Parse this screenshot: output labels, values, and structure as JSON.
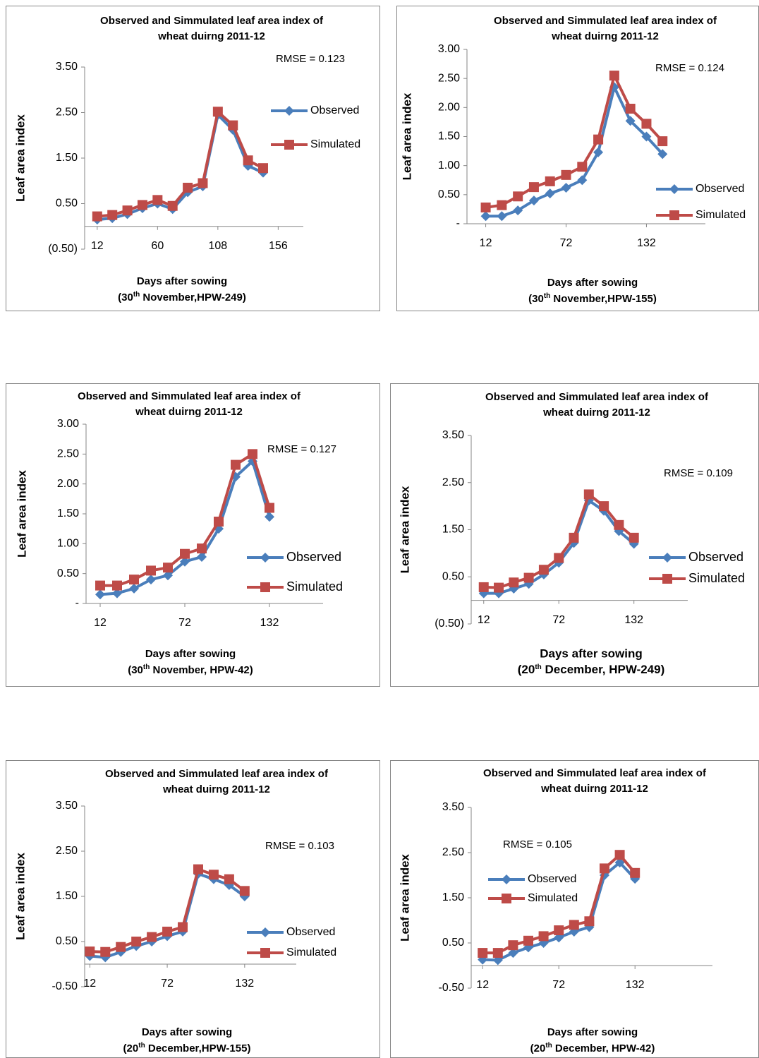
{
  "chart_data": [
    {
      "type": "line",
      "title": [
        "Observed and Simmulated leaf area index of",
        "wheat duirng  2011-12"
      ],
      "xlabel": "Days after sowing",
      "xlabel_note": [
        "(30",
        "th",
        " November,HPW-249)"
      ],
      "ylabel": "Leaf area index",
      "annotation": "RMSE = 0.123",
      "legend": "right",
      "grid": false,
      "x": [
        12,
        24,
        36,
        48,
        60,
        72,
        84,
        96,
        108,
        120,
        132,
        144
      ],
      "series": [
        {
          "name": "Observed",
          "color": "#4a7ebb",
          "marker": "diamond",
          "values": [
            0.15,
            0.18,
            0.27,
            0.4,
            0.5,
            0.38,
            0.75,
            0.88,
            2.45,
            2.12,
            1.33,
            1.18
          ]
        },
        {
          "name": "Simulated",
          "color": "#be4b48",
          "marker": "square",
          "values": [
            0.22,
            0.25,
            0.35,
            0.47,
            0.58,
            0.45,
            0.85,
            0.95,
            2.52,
            2.22,
            1.45,
            1.28
          ]
        }
      ],
      "xlim": [
        2,
        176
      ],
      "xticks": [
        12,
        60,
        108,
        156
      ],
      "ylim": [
        -0.5,
        3.5
      ],
      "yticks": [
        {
          "value": -0.5,
          "label": "(0.50)"
        },
        {
          "value": 0.5,
          "label": "0.50"
        },
        {
          "value": 1.5,
          "label": "1.50"
        },
        {
          "value": 2.5,
          "label": "2.50"
        },
        {
          "value": 3.5,
          "label": "3.50"
        }
      ]
    },
    {
      "type": "line",
      "title": [
        "Observed and Simmulated leaf area index of",
        "wheat duirng  2011-12"
      ],
      "xlabel": "Days after sowing",
      "xlabel_note": [
        "(30",
        "th",
        " November,HPW-155)"
      ],
      "ylabel": "Leaf area index",
      "annotation": "RMSE = 0.124",
      "legend": "lower right",
      "grid": false,
      "x": [
        12,
        24,
        36,
        48,
        60,
        72,
        84,
        96,
        108,
        120,
        132,
        144
      ],
      "series": [
        {
          "name": "Observed",
          "color": "#4a7ebb",
          "marker": "diamond",
          "values": [
            0.13,
            0.13,
            0.23,
            0.4,
            0.52,
            0.62,
            0.75,
            1.23,
            2.35,
            1.77,
            1.5,
            1.2
          ]
        },
        {
          "name": "Simulated",
          "color": "#be4b48",
          "marker": "square",
          "values": [
            0.28,
            0.32,
            0.47,
            0.63,
            0.73,
            0.84,
            0.98,
            1.45,
            2.55,
            1.98,
            1.72,
            1.42
          ]
        }
      ],
      "xlim": [
        -2,
        176
      ],
      "xticks": [
        12,
        72,
        132
      ],
      "ylim": [
        0,
        3
      ],
      "yticks": [
        {
          "value": 0,
          "label": "-"
        },
        {
          "value": 0.5,
          "label": "0.50"
        },
        {
          "value": 1,
          "label": "1.00"
        },
        {
          "value": 1.5,
          "label": "1.50"
        },
        {
          "value": 2,
          "label": "2.00"
        },
        {
          "value": 2.5,
          "label": "2.50"
        },
        {
          "value": 3,
          "label": "3.00"
        }
      ]
    },
    {
      "type": "line",
      "title": [
        "Observed and Simmulated leaf area index of",
        "wheat duirng  2011-12"
      ],
      "xlabel": "Days after sowing",
      "xlabel_note": [
        "(30",
        "th",
        " November, HPW-42)"
      ],
      "ylabel": "Leaf area index",
      "annotation": "RMSE = 0.127",
      "legend": "lower right",
      "grid": false,
      "x": [
        12,
        24,
        36,
        48,
        60,
        72,
        84,
        96,
        108,
        120,
        132
      ],
      "series": [
        {
          "name": "Observed",
          "color": "#4a7ebb",
          "marker": "diamond",
          "values": [
            0.15,
            0.17,
            0.25,
            0.4,
            0.47,
            0.7,
            0.78,
            1.25,
            2.12,
            2.38,
            1.45
          ]
        },
        {
          "name": "Simulated",
          "color": "#be4b48",
          "marker": "square",
          "values": [
            0.3,
            0.3,
            0.4,
            0.55,
            0.6,
            0.83,
            0.92,
            1.37,
            2.32,
            2.5,
            1.6
          ]
        }
      ],
      "xlim": [
        2,
        170
      ],
      "xticks": [
        12,
        72,
        132
      ],
      "ylim": [
        0,
        3
      ],
      "yticks": [
        {
          "value": 0,
          "label": "-"
        },
        {
          "value": 0.5,
          "label": "0.50"
        },
        {
          "value": 1,
          "label": "1.00"
        },
        {
          "value": 1.5,
          "label": "1.50"
        },
        {
          "value": 2,
          "label": "2.00"
        },
        {
          "value": 2.5,
          "label": "2.50"
        },
        {
          "value": 3,
          "label": "3.00"
        }
      ]
    },
    {
      "type": "line",
      "title": [
        "Observed and Simmulated leaf area index of",
        "wheat duirng  2011-12"
      ],
      "xlabel": "Days after sowing",
      "xlabel_note": [
        "(20",
        "th",
        " December, HPW-249)"
      ],
      "ylabel": "Leaf area index",
      "annotation": "RMSE = 0.109",
      "legend": "lower right",
      "grid": false,
      "x": [
        12,
        24,
        36,
        48,
        60,
        72,
        84,
        96,
        108,
        120,
        132
      ],
      "series": [
        {
          "name": "Observed",
          "color": "#4a7ebb",
          "marker": "diamond",
          "values": [
            0.15,
            0.15,
            0.25,
            0.35,
            0.55,
            0.8,
            1.22,
            2.12,
            1.9,
            1.47,
            1.2
          ]
        },
        {
          "name": "Simulated",
          "color": "#be4b48",
          "marker": "square",
          "values": [
            0.28,
            0.27,
            0.38,
            0.48,
            0.65,
            0.9,
            1.33,
            2.25,
            2.0,
            1.6,
            1.33
          ]
        }
      ],
      "xlim": [
        2,
        175
      ],
      "xticks": [
        12,
        72,
        132
      ],
      "ylim": [
        -0.5,
        3.5
      ],
      "yticks": [
        {
          "value": -0.5,
          "label": "(0.50)"
        },
        {
          "value": 0.5,
          "label": "0.50"
        },
        {
          "value": 1.5,
          "label": "1.50"
        },
        {
          "value": 2.5,
          "label": "2.50"
        },
        {
          "value": 3.5,
          "label": "3.50"
        }
      ]
    },
    {
      "type": "line",
      "title": [
        "Observed and Simmulated leaf area index of",
        "wheat duirng  2011-12"
      ],
      "xlabel": "Days after sowing",
      "xlabel_note": [
        "(20",
        "th",
        " December,HPW-155)"
      ],
      "ylabel": "Leaf area index",
      "annotation": "RMSE = 0.103",
      "legend": "lower right",
      "grid": false,
      "x": [
        12,
        24,
        36,
        48,
        60,
        72,
        84,
        96,
        108,
        120,
        132
      ],
      "series": [
        {
          "name": "Observed",
          "color": "#4a7ebb",
          "marker": "diamond",
          "values": [
            0.18,
            0.15,
            0.27,
            0.4,
            0.5,
            0.62,
            0.72,
            2.0,
            1.88,
            1.75,
            1.5
          ]
        },
        {
          "name": "Simulated",
          "color": "#be4b48",
          "marker": "square",
          "values": [
            0.28,
            0.27,
            0.38,
            0.5,
            0.6,
            0.72,
            0.82,
            2.1,
            1.98,
            1.88,
            1.62
          ]
        }
      ],
      "xlim": [
        8,
        172
      ],
      "xticks": [
        12,
        72,
        132
      ],
      "ylim": [
        -0.5,
        3.5
      ],
      "yticks": [
        {
          "value": -0.5,
          "label": "-0.50"
        },
        {
          "value": 0.5,
          "label": "0.50"
        },
        {
          "value": 1.5,
          "label": "1.50"
        },
        {
          "value": 2.5,
          "label": "2.50"
        },
        {
          "value": 3.5,
          "label": "3.50"
        }
      ]
    },
    {
      "type": "line",
      "title": [
        "Observed and Simmulated leaf area index of",
        "wheat duirng  2011-12"
      ],
      "xlabel": "Days after sowing",
      "xlabel_note": [
        "(20",
        "th",
        " December, HPW-42)"
      ],
      "ylabel": "Leaf area index",
      "annotation": "RMSE = 0.105",
      "legend": "upper left",
      "grid": false,
      "x": [
        12,
        24,
        36,
        48,
        60,
        72,
        84,
        96,
        108,
        120,
        132
      ],
      "series": [
        {
          "name": "Observed",
          "color": "#4a7ebb",
          "marker": "diamond",
          "values": [
            0.13,
            0.12,
            0.28,
            0.4,
            0.5,
            0.62,
            0.75,
            0.85,
            2.0,
            2.28,
            1.92
          ]
        },
        {
          "name": "Simulated",
          "color": "#be4b48",
          "marker": "square",
          "values": [
            0.28,
            0.28,
            0.45,
            0.55,
            0.65,
            0.78,
            0.9,
            0.98,
            2.15,
            2.45,
            2.05
          ]
        }
      ],
      "xlim": [
        3,
        193
      ],
      "xticks": [
        12,
        72,
        132
      ],
      "ylim": [
        -0.5,
        3.5
      ],
      "yticks": [
        {
          "value": -0.5,
          "label": "-0.50"
        },
        {
          "value": 0.5,
          "label": "0.50"
        },
        {
          "value": 1.5,
          "label": "1.50"
        },
        {
          "value": 2.5,
          "label": "2.50"
        },
        {
          "value": 3.5,
          "label": "3.50"
        }
      ]
    }
  ]
}
